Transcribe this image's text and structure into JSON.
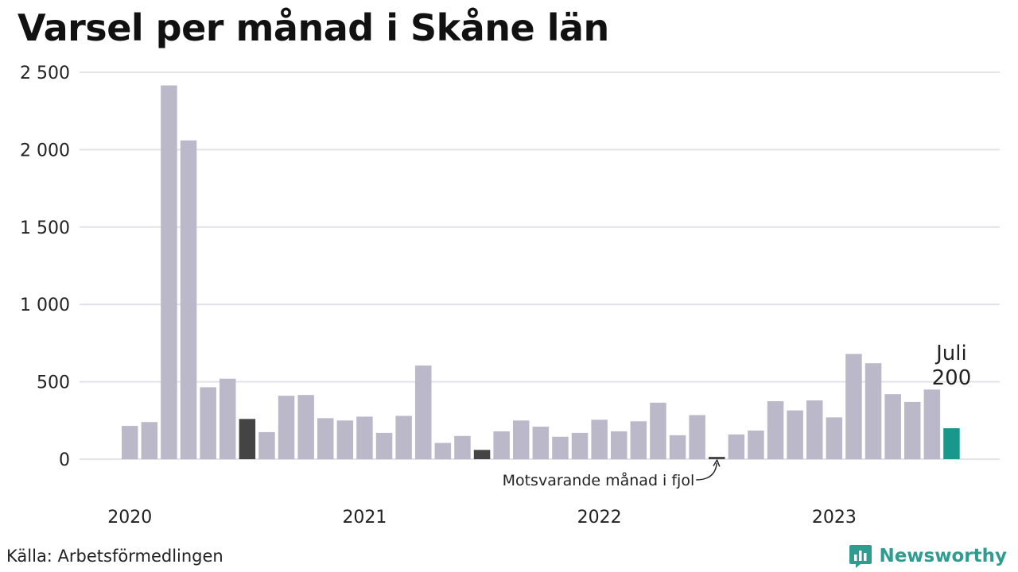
{
  "title": "Varsel per månad i Skåne län",
  "source": "Källa: Arbetsförmedlingen",
  "brand": {
    "name": "Newsworthy",
    "icon": "newsworthy-logo-icon"
  },
  "colors": {
    "bar": "#bbb8c9",
    "previous_year": "#444444",
    "highlight": "#17988a",
    "grid": "#e2e2e8",
    "brand": "#2e9c8e"
  },
  "chart_data": {
    "type": "bar",
    "title": "Varsel per månad i Skåne län",
    "xlabel": "",
    "ylabel": "",
    "ylim": [
      0,
      2500
    ],
    "yticks": [
      0,
      500,
      1000,
      1500,
      2000,
      2500
    ],
    "ytick_labels": [
      "0",
      "500",
      "1 000",
      "1 500",
      "2 000",
      "2 500"
    ],
    "grid": true,
    "year_labels": [
      {
        "label": "2020",
        "index": 0
      },
      {
        "label": "2021",
        "index": 12
      },
      {
        "label": "2022",
        "index": 24
      },
      {
        "label": "2023",
        "index": 36
      }
    ],
    "categories": [
      "2020-01",
      "2020-02",
      "2020-03",
      "2020-04",
      "2020-05",
      "2020-06",
      "2020-07",
      "2020-08",
      "2020-09",
      "2020-10",
      "2020-11",
      "2020-12",
      "2021-01",
      "2021-02",
      "2021-03",
      "2021-04",
      "2021-05",
      "2021-06",
      "2021-07",
      "2021-08",
      "2021-09",
      "2021-10",
      "2021-11",
      "2021-12",
      "2022-01",
      "2022-02",
      "2022-03",
      "2022-04",
      "2022-05",
      "2022-06",
      "2022-07",
      "2022-08",
      "2022-09",
      "2022-10",
      "2022-11",
      "2022-12",
      "2023-01",
      "2023-02",
      "2023-03",
      "2023-04",
      "2023-05",
      "2023-06",
      "2023-07"
    ],
    "values": [
      215,
      240,
      2415,
      2060,
      465,
      520,
      260,
      175,
      410,
      415,
      265,
      250,
      275,
      170,
      280,
      605,
      105,
      150,
      60,
      180,
      250,
      210,
      145,
      170,
      255,
      180,
      245,
      365,
      155,
      285,
      15,
      160,
      185,
      375,
      315,
      380,
      270,
      680,
      620,
      420,
      370,
      450,
      200
    ],
    "previous_year_indices": [
      6,
      18,
      30
    ],
    "highlight_index": 42,
    "annotations": {
      "highlight_month": "Juli",
      "highlight_value": "200",
      "previous_year_label": "Motsvarande månad i fjol"
    }
  }
}
